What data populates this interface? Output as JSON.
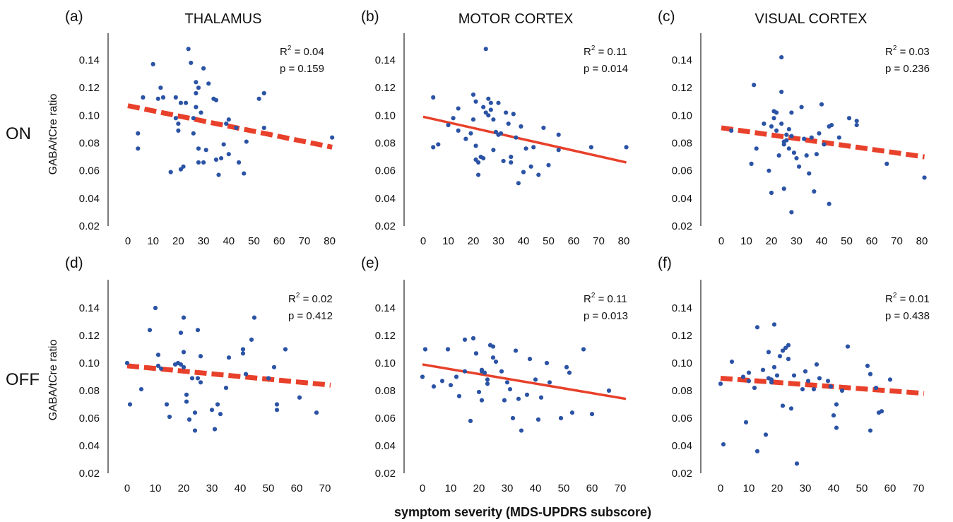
{
  "figure": {
    "xlabel": "symptom severity (MDS-UPDRS subscore)",
    "ylabel": "GABA/tCre ratio",
    "columns": [
      "THALAMUS",
      "MOTOR CORTEX",
      "VISUAL CORTEX"
    ],
    "rows": [
      "ON",
      "OFF"
    ],
    "colors": {
      "points": "#2b53a5",
      "fit": "#e8402a"
    }
  },
  "chart_data": [
    {
      "type": "scatter",
      "panel": "(a)",
      "region": "THALAMUS",
      "condition": "ON",
      "r2_label": "R",
      "r2_sup": "2",
      "r2_value": " = 0.04",
      "p_label": "p = 0.159",
      "xlim": [
        0,
        82
      ],
      "ylim": [
        0.02,
        0.15
      ],
      "xticks": [
        0,
        10,
        20,
        30,
        40,
        50,
        60,
        70,
        80
      ],
      "yticks": [
        0.02,
        0.04,
        0.06,
        0.08,
        0.1,
        0.12,
        0.14
      ],
      "fit": {
        "style": "dashed",
        "x": [
          0,
          81
        ],
        "y": [
          0.107,
          0.077
        ]
      },
      "points": [
        [
          4,
          0.087
        ],
        [
          4,
          0.076
        ],
        [
          6,
          0.113
        ],
        [
          10,
          0.137
        ],
        [
          12,
          0.112
        ],
        [
          13,
          0.12
        ],
        [
          14,
          0.113
        ],
        [
          17,
          0.059
        ],
        [
          19,
          0.113
        ],
        [
          19,
          0.098
        ],
        [
          20,
          0.089
        ],
        [
          20,
          0.094
        ],
        [
          21,
          0.109
        ],
        [
          21,
          0.061
        ],
        [
          22,
          0.063
        ],
        [
          23,
          0.109
        ],
        [
          24,
          0.148
        ],
        [
          25,
          0.138
        ],
        [
          26,
          0.098
        ],
        [
          26,
          0.087
        ],
        [
          27,
          0.124
        ],
        [
          27,
          0.116
        ],
        [
          27,
          0.106
        ],
        [
          28,
          0.12
        ],
        [
          28,
          0.076
        ],
        [
          28,
          0.066
        ],
        [
          29,
          0.102
        ],
        [
          30,
          0.134
        ],
        [
          30,
          0.066
        ],
        [
          31,
          0.075
        ],
        [
          32,
          0.123
        ],
        [
          34,
          0.112
        ],
        [
          35,
          0.111
        ],
        [
          35,
          0.068
        ],
        [
          36,
          0.057
        ],
        [
          37,
          0.069
        ],
        [
          38,
          0.079
        ],
        [
          39,
          0.094
        ],
        [
          40,
          0.072
        ],
        [
          40,
          0.097
        ],
        [
          43,
          0.091
        ],
        [
          44,
          0.066
        ],
        [
          46,
          0.058
        ],
        [
          47,
          0.081
        ],
        [
          52,
          0.112
        ],
        [
          54,
          0.116
        ],
        [
          54,
          0.091
        ],
        [
          81,
          0.084
        ]
      ]
    },
    {
      "type": "scatter",
      "panel": "(b)",
      "region": "MOTOR CORTEX",
      "condition": "ON",
      "r2_label": "R",
      "r2_sup": "2",
      "r2_value": " = 0.11",
      "p_label": "p = 0.014",
      "xlim": [
        0,
        82
      ],
      "ylim": [
        0.02,
        0.15
      ],
      "xticks": [
        0,
        10,
        20,
        30,
        40,
        50,
        60,
        70,
        80
      ],
      "yticks": [
        0.02,
        0.04,
        0.06,
        0.08,
        0.1,
        0.12,
        0.14
      ],
      "fit": {
        "style": "solid",
        "x": [
          0,
          81
        ],
        "y": [
          0.099,
          0.066
        ]
      },
      "points": [
        [
          4,
          0.113
        ],
        [
          4,
          0.077
        ],
        [
          6,
          0.079
        ],
        [
          10,
          0.093
        ],
        [
          12,
          0.098
        ],
        [
          14,
          0.089
        ],
        [
          14,
          0.105
        ],
        [
          17,
          0.083
        ],
        [
          19,
          0.087
        ],
        [
          20,
          0.115
        ],
        [
          20,
          0.097
        ],
        [
          21,
          0.11
        ],
        [
          21,
          0.078
        ],
        [
          21,
          0.068
        ],
        [
          22,
          0.066
        ],
        [
          22,
          0.057
        ],
        [
          23,
          0.07
        ],
        [
          24,
          0.106
        ],
        [
          24,
          0.069
        ],
        [
          25,
          0.148
        ],
        [
          25,
          0.102
        ],
        [
          26,
          0.112
        ],
        [
          26,
          0.1
        ],
        [
          27,
          0.109
        ],
        [
          27,
          0.104
        ],
        [
          28,
          0.097
        ],
        [
          28,
          0.075
        ],
        [
          29,
          0.088
        ],
        [
          30,
          0.109
        ],
        [
          30,
          0.086
        ],
        [
          31,
          0.087
        ],
        [
          32,
          0.067
        ],
        [
          33,
          0.102
        ],
        [
          34,
          0.094
        ],
        [
          35,
          0.07
        ],
        [
          35,
          0.066
        ],
        [
          36,
          0.101
        ],
        [
          37,
          0.084
        ],
        [
          38,
          0.051
        ],
        [
          39,
          0.092
        ],
        [
          40,
          0.059
        ],
        [
          41,
          0.076
        ],
        [
          43,
          0.063
        ],
        [
          44,
          0.077
        ],
        [
          46,
          0.057
        ],
        [
          48,
          0.091
        ],
        [
          50,
          0.064
        ],
        [
          54,
          0.086
        ],
        [
          54,
          0.075
        ],
        [
          67,
          0.077
        ],
        [
          81,
          0.077
        ]
      ]
    },
    {
      "type": "scatter",
      "panel": "(c)",
      "region": "VISUAL CORTEX",
      "condition": "ON",
      "r2_label": "R",
      "r2_sup": "2",
      "r2_value": " = 0.03",
      "p_label": "p = 0.236",
      "xlim": [
        0,
        82
      ],
      "ylim": [
        0.02,
        0.15
      ],
      "xticks": [
        0,
        10,
        20,
        30,
        40,
        50,
        60,
        70,
        80
      ],
      "yticks": [
        0.02,
        0.04,
        0.06,
        0.08,
        0.1,
        0.12,
        0.14
      ],
      "fit": {
        "style": "dashed",
        "x": [
          0,
          81
        ],
        "y": [
          0.091,
          0.07
        ]
      },
      "points": [
        [
          4,
          0.089
        ],
        [
          12,
          0.065
        ],
        [
          13,
          0.122
        ],
        [
          14,
          0.076
        ],
        [
          17,
          0.094
        ],
        [
          19,
          0.06
        ],
        [
          20,
          0.092
        ],
        [
          20,
          0.044
        ],
        [
          21,
          0.098
        ],
        [
          21,
          0.103
        ],
        [
          22,
          0.089
        ],
        [
          22,
          0.102
        ],
        [
          23,
          0.071
        ],
        [
          24,
          0.094
        ],
        [
          24,
          0.142
        ],
        [
          24,
          0.117
        ],
        [
          25,
          0.081
        ],
        [
          25,
          0.079
        ],
        [
          25,
          0.047
        ],
        [
          26,
          0.086
        ],
        [
          26,
          0.082
        ],
        [
          27,
          0.09
        ],
        [
          27,
          0.076
        ],
        [
          28,
          0.085
        ],
        [
          28,
          0.03
        ],
        [
          28,
          0.102
        ],
        [
          29,
          0.073
        ],
        [
          30,
          0.069
        ],
        [
          31,
          0.063
        ],
        [
          32,
          0.106
        ],
        [
          33,
          0.083
        ],
        [
          34,
          0.071
        ],
        [
          35,
          0.058
        ],
        [
          36,
          0.084
        ],
        [
          37,
          0.045
        ],
        [
          38,
          0.072
        ],
        [
          39,
          0.087
        ],
        [
          40,
          0.108
        ],
        [
          41,
          0.079
        ],
        [
          43,
          0.092
        ],
        [
          43,
          0.036
        ],
        [
          44,
          0.093
        ],
        [
          47,
          0.084
        ],
        [
          51,
          0.098
        ],
        [
          54,
          0.096
        ],
        [
          54,
          0.093
        ],
        [
          66,
          0.065
        ],
        [
          81,
          0.055
        ]
      ]
    },
    {
      "type": "scatter",
      "panel": "(d)",
      "region": "THALAMUS",
      "condition": "OFF",
      "r2_label": "R",
      "r2_sup": "2",
      "r2_value": " = 0.02",
      "p_label": "p = 0.412",
      "xlim": [
        0,
        74
      ],
      "ylim": [
        0.02,
        0.15
      ],
      "xticks": [
        0,
        10,
        20,
        30,
        40,
        50,
        60,
        70
      ],
      "yticks": [
        0.02,
        0.04,
        0.06,
        0.08,
        0.1,
        0.12,
        0.14
      ],
      "fit": {
        "style": "dashed",
        "x": [
          0,
          72
        ],
        "y": [
          0.098,
          0.084
        ]
      },
      "points": [
        [
          0,
          0.1
        ],
        [
          1,
          0.07
        ],
        [
          5,
          0.081
        ],
        [
          8,
          0.124
        ],
        [
          10,
          0.14
        ],
        [
          11,
          0.106
        ],
        [
          11,
          0.098
        ],
        [
          12,
          0.096
        ],
        [
          14,
          0.07
        ],
        [
          15,
          0.061
        ],
        [
          17,
          0.099
        ],
        [
          18,
          0.1
        ],
        [
          19,
          0.099
        ],
        [
          19,
          0.122
        ],
        [
          20,
          0.097
        ],
        [
          20,
          0.133
        ],
        [
          20,
          0.108
        ],
        [
          21,
          0.077
        ],
        [
          21,
          0.072
        ],
        [
          22,
          0.059
        ],
        [
          23,
          0.089
        ],
        [
          24,
          0.064
        ],
        [
          24,
          0.051
        ],
        [
          25,
          0.124
        ],
        [
          25,
          0.089
        ],
        [
          26,
          0.086
        ],
        [
          26,
          0.105
        ],
        [
          30,
          0.066
        ],
        [
          31,
          0.052
        ],
        [
          32,
          0.07
        ],
        [
          33,
          0.063
        ],
        [
          35,
          0.082
        ],
        [
          36,
          0.104
        ],
        [
          41,
          0.11
        ],
        [
          41,
          0.107
        ],
        [
          42,
          0.092
        ],
        [
          44,
          0.117
        ],
        [
          45,
          0.133
        ],
        [
          50,
          0.089
        ],
        [
          52,
          0.097
        ],
        [
          53,
          0.07
        ],
        [
          53,
          0.066
        ],
        [
          56,
          0.11
        ],
        [
          61,
          0.075
        ],
        [
          67,
          0.064
        ]
      ]
    },
    {
      "type": "scatter",
      "panel": "(e)",
      "region": "MOTOR CORTEX",
      "condition": "OFF",
      "r2_label": "R",
      "r2_sup": "2",
      "r2_value": " = 0.11",
      "p_label": "p = 0.013",
      "xlim": [
        0,
        74
      ],
      "ylim": [
        0.02,
        0.15
      ],
      "xticks": [
        0,
        10,
        20,
        30,
        40,
        50,
        60,
        70
      ],
      "yticks": [
        0.02,
        0.04,
        0.06,
        0.08,
        0.1,
        0.12,
        0.14
      ],
      "fit": {
        "style": "solid",
        "x": [
          0,
          72
        ],
        "y": [
          0.099,
          0.074
        ]
      },
      "points": [
        [
          0,
          0.09
        ],
        [
          1,
          0.11
        ],
        [
          4,
          0.083
        ],
        [
          7,
          0.087
        ],
        [
          9,
          0.11
        ],
        [
          10,
          0.084
        ],
        [
          12,
          0.09
        ],
        [
          13,
          0.076
        ],
        [
          15,
          0.117
        ],
        [
          15,
          0.094
        ],
        [
          17,
          0.058
        ],
        [
          18,
          0.118
        ],
        [
          19,
          0.107
        ],
        [
          19,
          0.107
        ],
        [
          20,
          0.079
        ],
        [
          21,
          0.095
        ],
        [
          21,
          0.073
        ],
        [
          21,
          0.094
        ],
        [
          22,
          0.093
        ],
        [
          23,
          0.088
        ],
        [
          23,
          0.085
        ],
        [
          24,
          0.113
        ],
        [
          25,
          0.104
        ],
        [
          25,
          0.112
        ],
        [
          26,
          0.101
        ],
        [
          28,
          0.094
        ],
        [
          29,
          0.073
        ],
        [
          30,
          0.086
        ],
        [
          31,
          0.081
        ],
        [
          32,
          0.06
        ],
        [
          33,
          0.109
        ],
        [
          34,
          0.074
        ],
        [
          35,
          0.051
        ],
        [
          37,
          0.077
        ],
        [
          38,
          0.103
        ],
        [
          40,
          0.088
        ],
        [
          41,
          0.059
        ],
        [
          42,
          0.075
        ],
        [
          44,
          0.1
        ],
        [
          45,
          0.086
        ],
        [
          49,
          0.06
        ],
        [
          51,
          0.097
        ],
        [
          52,
          0.093
        ],
        [
          53,
          0.064
        ],
        [
          57,
          0.11
        ],
        [
          60,
          0.063
        ],
        [
          66,
          0.08
        ]
      ]
    },
    {
      "type": "scatter",
      "panel": "(f)",
      "region": "VISUAL CORTEX",
      "condition": "OFF",
      "r2_label": "R",
      "r2_sup": "2",
      "r2_value": " = 0.01",
      "p_label": "p = 0.438",
      "xlim": [
        0,
        74
      ],
      "ylim": [
        0.02,
        0.15
      ],
      "xticks": [
        0,
        10,
        20,
        30,
        40,
        50,
        60,
        70
      ],
      "yticks": [
        0.02,
        0.04,
        0.06,
        0.08,
        0.1,
        0.12,
        0.14
      ],
      "fit": {
        "style": "dashed",
        "x": [
          0,
          72
        ],
        "y": [
          0.089,
          0.078
        ]
      },
      "points": [
        [
          0,
          0.085
        ],
        [
          1,
          0.041
        ],
        [
          4,
          0.101
        ],
        [
          8,
          0.09
        ],
        [
          9,
          0.057
        ],
        [
          10,
          0.093
        ],
        [
          10,
          0.087
        ],
        [
          12,
          0.082
        ],
        [
          13,
          0.036
        ],
        [
          13,
          0.126
        ],
        [
          15,
          0.095
        ],
        [
          16,
          0.048
        ],
        [
          17,
          0.089
        ],
        [
          17,
          0.108
        ],
        [
          18,
          0.086
        ],
        [
          18,
          0.088
        ],
        [
          19,
          0.128
        ],
        [
          19,
          0.097
        ],
        [
          20,
          0.091
        ],
        [
          21,
          0.105
        ],
        [
          22,
          0.109
        ],
        [
          22,
          0.069
        ],
        [
          23,
          0.111
        ],
        [
          24,
          0.113
        ],
        [
          24,
          0.103
        ],
        [
          25,
          0.067
        ],
        [
          26,
          0.091
        ],
        [
          27,
          0.027
        ],
        [
          29,
          0.081
        ],
        [
          30,
          0.094
        ],
        [
          31,
          0.087
        ],
        [
          33,
          0.081
        ],
        [
          34,
          0.099
        ],
        [
          35,
          0.089
        ],
        [
          38,
          0.087
        ],
        [
          39,
          0.083
        ],
        [
          40,
          0.062
        ],
        [
          41,
          0.053
        ],
        [
          41,
          0.07
        ],
        [
          43,
          0.08
        ],
        [
          45,
          0.112
        ],
        [
          52,
          0.098
        ],
        [
          53,
          0.092
        ],
        [
          53,
          0.051
        ],
        [
          55,
          0.082
        ],
        [
          56,
          0.064
        ],
        [
          57,
          0.065
        ],
        [
          60,
          0.088
        ]
      ]
    }
  ]
}
